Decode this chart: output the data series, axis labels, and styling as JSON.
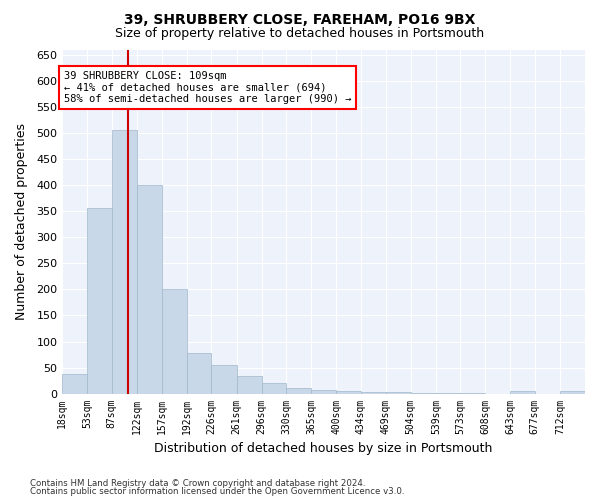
{
  "title1": "39, SHRUBBERY CLOSE, FAREHAM, PO16 9BX",
  "title2": "Size of property relative to detached houses in Portsmouth",
  "xlabel": "Distribution of detached houses by size in Portsmouth",
  "ylabel": "Number of detached properties",
  "annotation_line1": "39 SHRUBBERY CLOSE: 109sqm",
  "annotation_line2": "← 41% of detached houses are smaller (694)",
  "annotation_line3": "58% of semi-detached houses are larger (990) →",
  "property_size": 109,
  "bar_edges": [
    18,
    53,
    87,
    122,
    157,
    192,
    226,
    261,
    296,
    330,
    365,
    400,
    434,
    469,
    504,
    539,
    573,
    608,
    643,
    677,
    712,
    747
  ],
  "bar_heights": [
    37,
    357,
    507,
    400,
    200,
    78,
    55,
    33,
    20,
    11,
    7,
    5,
    3,
    3,
    2,
    2,
    1,
    0,
    5,
    0,
    4
  ],
  "bar_color": "#c8d8e8",
  "bar_edge_color": "#a0b8cc",
  "vline_color": "#cc0000",
  "vline_x": 109,
  "ylim": [
    0,
    660
  ],
  "yticks": [
    0,
    50,
    100,
    150,
    200,
    250,
    300,
    350,
    400,
    450,
    500,
    550,
    600,
    650
  ],
  "xtick_labels": [
    "18sqm",
    "53sqm",
    "87sqm",
    "122sqm",
    "157sqm",
    "192sqm",
    "226sqm",
    "261sqm",
    "296sqm",
    "330sqm",
    "365sqm",
    "400sqm",
    "434sqm",
    "469sqm",
    "504sqm",
    "539sqm",
    "573sqm",
    "608sqm",
    "643sqm",
    "677sqm",
    "712sqm"
  ],
  "bg_color": "#eef2fb",
  "grid_color": "#ffffff",
  "footer1": "Contains HM Land Registry data © Crown copyright and database right 2024.",
  "footer2": "Contains public sector information licensed under the Open Government Licence v3.0."
}
